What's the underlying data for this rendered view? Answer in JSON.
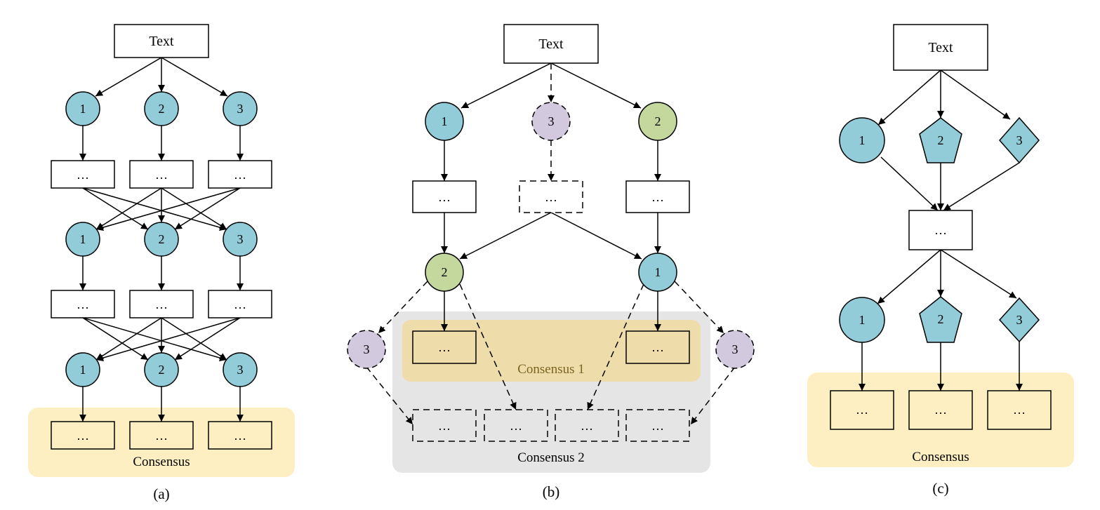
{
  "colors": {
    "node_blue": "#92ccd9",
    "node_green": "#c4d89e",
    "node_purple": "#d3c9de",
    "consensus_yellow": "#fdefc2",
    "consensus1_tan": "#efdcab",
    "consensus2_gray": "#e5e5e5",
    "consensus1_text": "#7a6520"
  },
  "panel_a": {
    "text_box": "Text",
    "row1": [
      "1",
      "2",
      "3"
    ],
    "box1": [
      "…",
      "…",
      "…"
    ],
    "row2": [
      "1",
      "2",
      "3"
    ],
    "box2": [
      "…",
      "…",
      "…"
    ],
    "row3": [
      "1",
      "2",
      "3"
    ],
    "box3": [
      "…",
      "…",
      "…"
    ],
    "consensus_label": "Consensus",
    "caption": "(a)"
  },
  "panel_b": {
    "text_box": "Text",
    "top_nodes": [
      "1",
      "3",
      "2"
    ],
    "top_boxes": [
      "…",
      "…",
      "…"
    ],
    "mid_nodes": [
      "2",
      "1"
    ],
    "side_nodes": [
      "3",
      "3"
    ],
    "consensus1_boxes": [
      "…",
      "…"
    ],
    "consensus1_label": "Consensus 1",
    "consensus2_boxes": [
      "…",
      "…",
      "…",
      "…"
    ],
    "consensus2_label": "Consensus 2",
    "caption": "(b)"
  },
  "panel_c": {
    "text_box": "Text",
    "top_nodes": [
      "1",
      "2",
      "3"
    ],
    "mid_box": "…",
    "bottom_nodes": [
      "1",
      "2",
      "3"
    ],
    "bottom_boxes": [
      "…",
      "…",
      "…"
    ],
    "consensus_label": "Consensus",
    "caption": "(c)"
  }
}
